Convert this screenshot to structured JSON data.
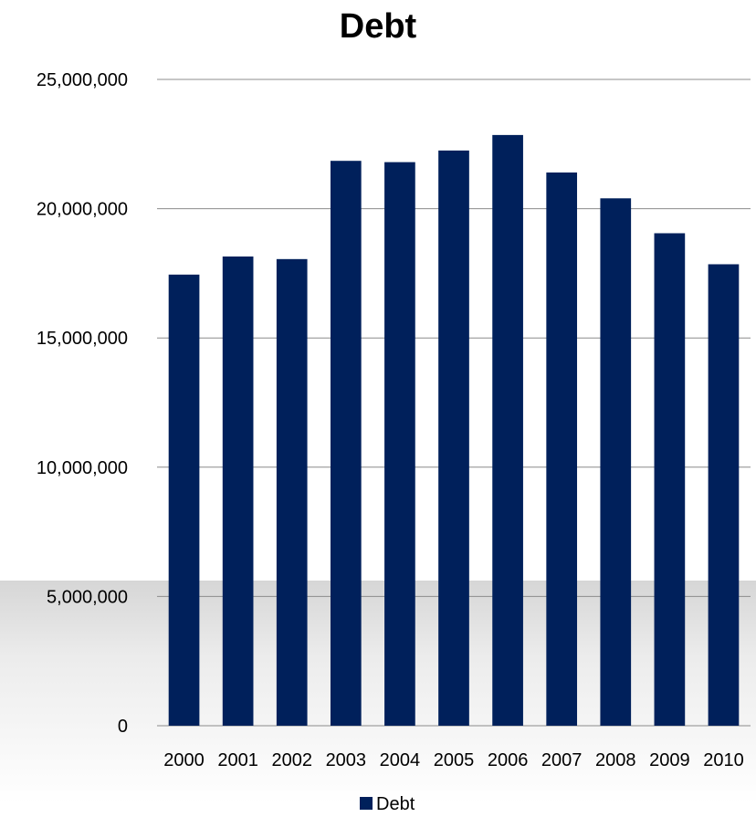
{
  "chart_data": {
    "type": "bar",
    "title": "Debt",
    "categories": [
      "2000",
      "2001",
      "2002",
      "2003",
      "2004",
      "2005",
      "2006",
      "2007",
      "2008",
      "2009",
      "2010"
    ],
    "series": [
      {
        "name": "Debt",
        "color": "#00205b",
        "values": [
          17450000,
          18150000,
          18050000,
          21850000,
          21800000,
          22250000,
          22850000,
          21400000,
          20400000,
          19050000,
          17850000
        ]
      }
    ],
    "ylim": [
      0,
      25000000
    ],
    "yticks": [
      0,
      5000000,
      10000000,
      15000000,
      20000000,
      25000000
    ],
    "ytick_labels": [
      "0",
      "5,000,000",
      "10,000,000",
      "15,000,000",
      "20,000,000",
      "25,000,000"
    ],
    "grid": true,
    "legend": {
      "position": "bottom",
      "entries": [
        "Debt"
      ]
    }
  }
}
